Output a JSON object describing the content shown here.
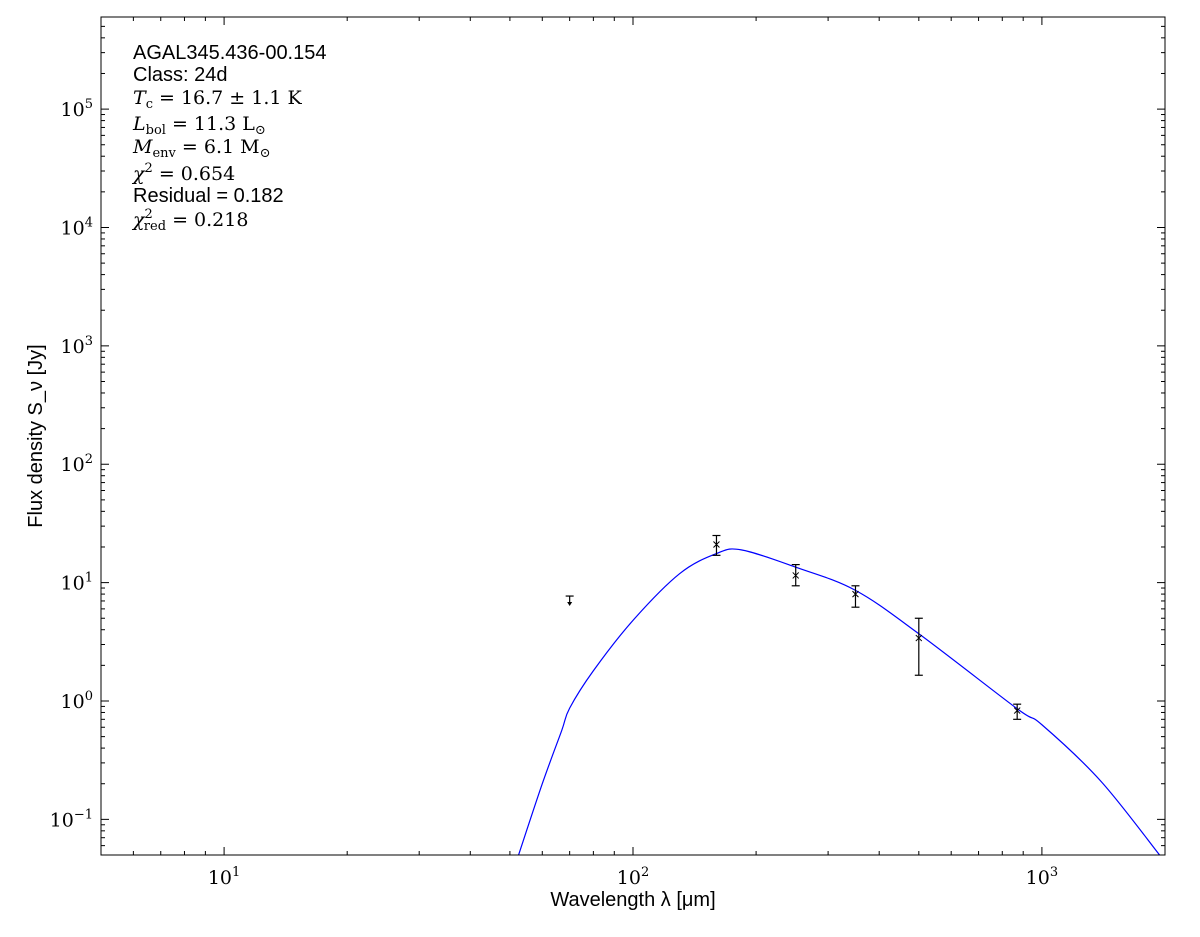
{
  "chart_data": {
    "type": "scatter",
    "xlabel": "Wavelength λ [μm]",
    "ylabel": "Flux density S_ν [Jy]",
    "xscale": "log",
    "yscale": "log",
    "xlim": [
      5,
      2000
    ],
    "ylim": [
      0.05,
      600000
    ],
    "grid": false,
    "x_ticks": [
      {
        "value": 10,
        "base": "10",
        "exp": "1"
      },
      {
        "value": 100,
        "base": "10",
        "exp": "2"
      },
      {
        "value": 1000,
        "base": "10",
        "exp": "3"
      }
    ],
    "y_ticks": [
      {
        "value": 0.1,
        "base": "10",
        "exp": "−1"
      },
      {
        "value": 1,
        "base": "10",
        "exp": "0"
      },
      {
        "value": 10,
        "base": "10",
        "exp": "1"
      },
      {
        "value": 100,
        "base": "10",
        "exp": "2"
      },
      {
        "value": 1000,
        "base": "10",
        "exp": "3"
      },
      {
        "value": 10000,
        "base": "10",
        "exp": "4"
      },
      {
        "value": 100000,
        "base": "10",
        "exp": "5"
      }
    ],
    "annotations": {
      "source": "AGAL345.436-00.154",
      "class": "Class: 24d",
      "tc": {
        "sym": "T",
        "sub": "c",
        "rest": " = 16.7 ± 1.1 K"
      },
      "lbol": {
        "sym": "L",
        "sub": "bol",
        "rest": " = 11.3 L",
        "tail": "⊙"
      },
      "menv": {
        "sym": "M",
        "sub": "env",
        "rest": " = 6.1 M",
        "tail": "⊙"
      },
      "chi2": {
        "sym": "χ",
        "sup": "2",
        "rest": " = 0.654"
      },
      "residual": "Residual = 0.182",
      "chi2red": {
        "sym": "χ",
        "sup": "2",
        "sub": "red",
        "rest": " = 0.218"
      }
    },
    "upper_limits": [
      {
        "x": 70,
        "y": 7.7
      }
    ],
    "points": [
      {
        "x": 160,
        "y": 21,
        "ylow": 17,
        "yhigh": 25
      },
      {
        "x": 250,
        "y": 11.5,
        "ylow": 9.4,
        "yhigh": 14.2
      },
      {
        "x": 350,
        "y": 8.0,
        "ylow": 6.2,
        "yhigh": 9.4
      },
      {
        "x": 500,
        "y": 3.4,
        "ylow": 1.65,
        "yhigh": 5.0
      },
      {
        "x": 870,
        "y": 0.83,
        "ylow": 0.7,
        "yhigh": 0.94
      }
    ],
    "model_curve": {
      "color": "#0000ff",
      "points": [
        [
          52.5,
          0.05
        ],
        [
          60,
          0.2
        ],
        [
          66.9,
          0.56
        ],
        [
          70,
          0.87
        ],
        [
          80,
          1.8
        ],
        [
          100,
          4.8
        ],
        [
          130,
          11.9
        ],
        [
          160,
          17.6
        ],
        [
          184,
          18.9
        ],
        [
          250,
          13.5
        ],
        [
          350,
          8.6
        ],
        [
          500,
          3.7
        ],
        [
          870,
          0.86
        ],
        [
          1000,
          0.63
        ],
        [
          1394,
          0.21
        ],
        [
          1940,
          0.05
        ]
      ]
    },
    "marker_color": "#000000"
  }
}
